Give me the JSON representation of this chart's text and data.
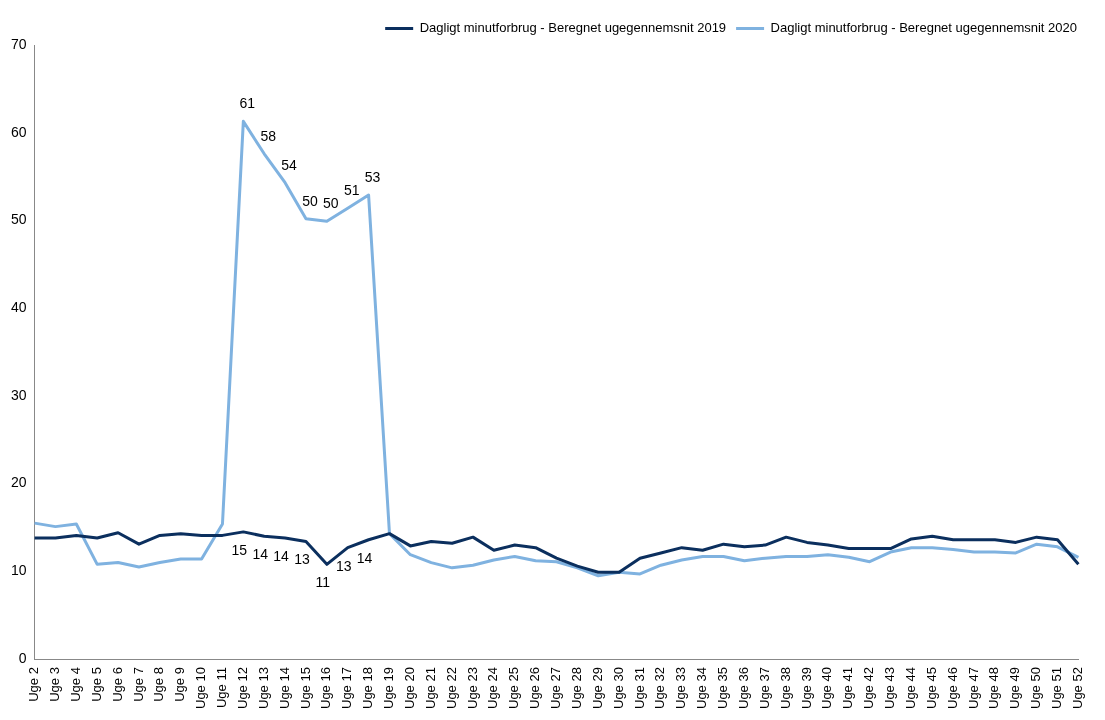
{
  "chart_data": {
    "type": "line",
    "categories": [
      "Uge 2",
      "Uge 3",
      "Uge 4",
      "Uge 5",
      "Uge 6",
      "Uge 7",
      "Uge 8",
      "Uge 9",
      "Uge 10",
      "Uge 11",
      "Uge 12",
      "Uge 13",
      "Uge 14",
      "Uge 15",
      "Uge 16",
      "Uge 17",
      "Uge 18",
      "Uge 19",
      "Uge 20",
      "Uge 21",
      "Uge 22",
      "Uge 23",
      "Uge 24",
      "Uge 25",
      "Uge 26",
      "Uge 27",
      "Uge 28",
      "Uge 29",
      "Uge 30",
      "Uge 31",
      "Uge 32",
      "Uge 33",
      "Uge 34",
      "Uge 35",
      "Uge 36",
      "Uge 37",
      "Uge 38",
      "Uge 39",
      "Uge 40",
      "Uge 41",
      "Uge 42",
      "Uge 43",
      "Uge 44",
      "Uge 45",
      "Uge 46",
      "Uge 47",
      "Uge 48",
      "Uge 49",
      "Uge 50",
      "Uge 51",
      "Uge 52"
    ],
    "series": [
      {
        "name": "Dagligt minutforbrug - Beregnet ugegennemsnit 2019",
        "color": "#0b2f5e",
        "values": [
          13.8,
          13.8,
          14.1,
          13.8,
          14.4,
          13.1,
          14.1,
          14.3,
          14.1,
          14.1,
          14.5,
          14,
          13.8,
          13.4,
          10.8,
          12.7,
          13.6,
          14.3,
          12.9,
          13.4,
          13.2,
          13.9,
          12.4,
          13.0,
          12.7,
          11.5,
          10.6,
          9.9,
          9.9,
          11.5,
          12.1,
          12.7,
          12.4,
          13.1,
          12.8,
          13.0,
          13.9,
          13.3,
          13.0,
          12.6,
          12.6,
          12.6,
          13.7,
          14.0,
          13.6,
          13.6,
          13.6,
          13.3,
          13.9,
          13.6,
          10.8
        ],
        "value_labels": [
          null,
          null,
          null,
          null,
          null,
          null,
          null,
          null,
          null,
          null,
          "15",
          "14",
          "14",
          "13",
          "11",
          "13",
          "14",
          null,
          null,
          null,
          null,
          null,
          null,
          null,
          null,
          null,
          null,
          null,
          null,
          null,
          null,
          null,
          null,
          null,
          null,
          null,
          null,
          null,
          null,
          null,
          null,
          null,
          null,
          null,
          null,
          null,
          null,
          null,
          null,
          null,
          null
        ]
      },
      {
        "name": "Dagligt minutforbrug - Beregnet ugegennemsnit 2020",
        "color": "#7fb2e0",
        "values": [
          15.5,
          15.1,
          15.4,
          10.8,
          11.0,
          10.5,
          11.0,
          11.4,
          11.4,
          15.4,
          61.3,
          57.6,
          54.3,
          50.2,
          49.9,
          51.4,
          52.9,
          14.3,
          11.9,
          11.0,
          10.4,
          10.7,
          11.3,
          11.7,
          11.2,
          11.1,
          10.4,
          9.5,
          9.9,
          9.7,
          10.7,
          11.3,
          11.7,
          11.7,
          11.2,
          11.5,
          11.7,
          11.7,
          11.9,
          11.6,
          11.1,
          12.2,
          12.7,
          12.7,
          12.5,
          12.2,
          12.2,
          12.1,
          13.1,
          12.8,
          11.6
        ],
        "value_labels": [
          null,
          null,
          null,
          null,
          null,
          null,
          null,
          null,
          null,
          null,
          "61",
          "58",
          "54",
          "50",
          "50",
          "51",
          "53",
          null,
          null,
          null,
          null,
          null,
          null,
          null,
          null,
          null,
          null,
          null,
          null,
          null,
          null,
          null,
          null,
          null,
          null,
          null,
          null,
          null,
          null,
          null,
          null,
          null,
          null,
          null,
          null,
          null,
          null,
          null,
          null,
          null,
          null
        ]
      }
    ],
    "ylim": [
      0,
      70
    ],
    "yticks": [
      0,
      10,
      20,
      30,
      40,
      50,
      60,
      70
    ],
    "grid": false,
    "legend": "top right",
    "marker": "none",
    "line_style": "solid"
  }
}
